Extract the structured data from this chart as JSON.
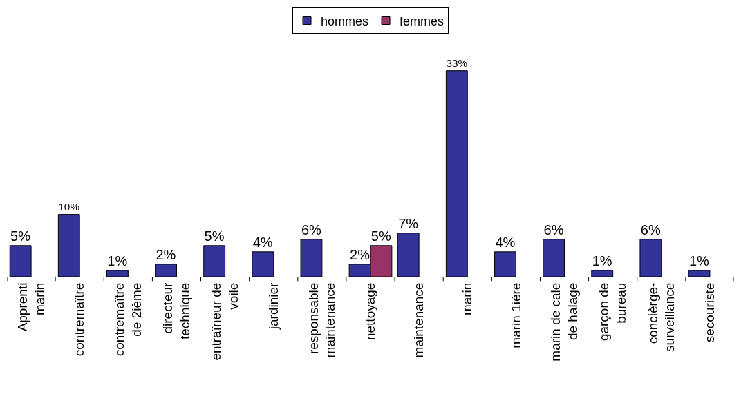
{
  "chart_data": {
    "type": "bar",
    "categories": [
      "Apprenti\nmarin",
      "contremaître",
      "contremaître\nde 2ième",
      "directeur\ntechnique",
      "entraîneur de\nvoile",
      "jardinier",
      "responsable\nmaintenance",
      "nettoyage",
      "maintenance",
      "marin",
      "marin 1ière",
      "marin de cale\nde halage",
      "garçon de\nbureau",
      "concièrge-\nsurveillance",
      "secouriste"
    ],
    "series": [
      {
        "name": "hommes",
        "color": "#333399",
        "values": [
          5,
          10,
          1,
          2,
          5,
          4,
          6,
          2,
          7,
          33,
          4,
          6,
          1,
          6,
          1
        ],
        "value_labels": [
          "5%",
          "10%",
          "1%",
          "2%",
          "5%",
          "4%",
          "6%",
          "2%",
          "7%",
          "33%",
          "4%",
          "6%",
          "1%",
          "6%",
          "1%"
        ]
      },
      {
        "name": "femmes",
        "color": "#993366",
        "values": [
          null,
          null,
          null,
          null,
          null,
          null,
          null,
          5,
          null,
          null,
          null,
          null,
          null,
          null,
          null
        ],
        "value_labels": [
          null,
          null,
          null,
          null,
          null,
          null,
          null,
          "5%",
          null,
          null,
          null,
          null,
          null,
          null,
          null
        ]
      }
    ],
    "legend": "top",
    "grid": false
  }
}
